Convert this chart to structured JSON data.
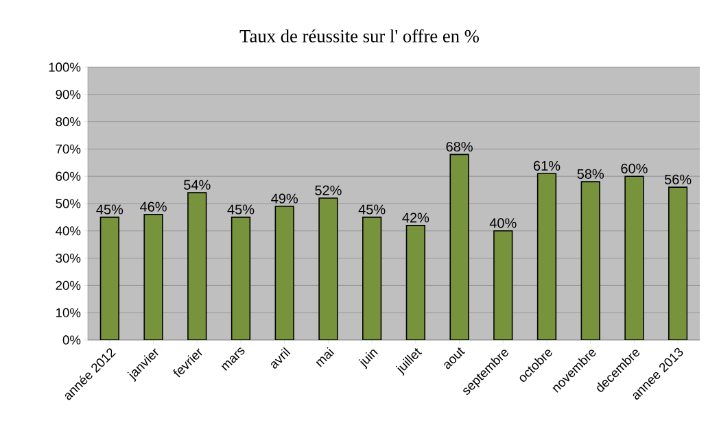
{
  "chart_data": {
    "type": "bar",
    "title": "Taux de réussite sur l' offre en %",
    "categories": [
      "année 2012",
      "janvier",
      "fevrier",
      "mars",
      "avril",
      "mai",
      "juin",
      "juillet",
      "aout",
      "septembre",
      "octobre",
      "novembre",
      "decembre",
      "annee 2013"
    ],
    "values": [
      45,
      46,
      54,
      45,
      49,
      52,
      45,
      42,
      68,
      40,
      61,
      58,
      60,
      56
    ],
    "value_labels": [
      "45%",
      "46%",
      "54%",
      "45%",
      "49%",
      "52%",
      "45%",
      "42%",
      "68%",
      "40%",
      "61%",
      "58%",
      "60%",
      "56%"
    ],
    "color": "#77933c",
    "ylim": [
      0,
      100
    ],
    "yticks": [
      {
        "value": 0,
        "label": "0%"
      },
      {
        "value": 10,
        "label": "10%"
      },
      {
        "value": 20,
        "label": "20%"
      },
      {
        "value": 30,
        "label": "30%"
      },
      {
        "value": 40,
        "label": "40%"
      },
      {
        "value": 50,
        "label": "50%"
      },
      {
        "value": 60,
        "label": "60%"
      },
      {
        "value": 70,
        "label": "70%"
      },
      {
        "value": 80,
        "label": "80%"
      },
      {
        "value": 90,
        "label": "90%"
      },
      {
        "value": 100,
        "label": "100%"
      }
    ],
    "grid": "y"
  }
}
